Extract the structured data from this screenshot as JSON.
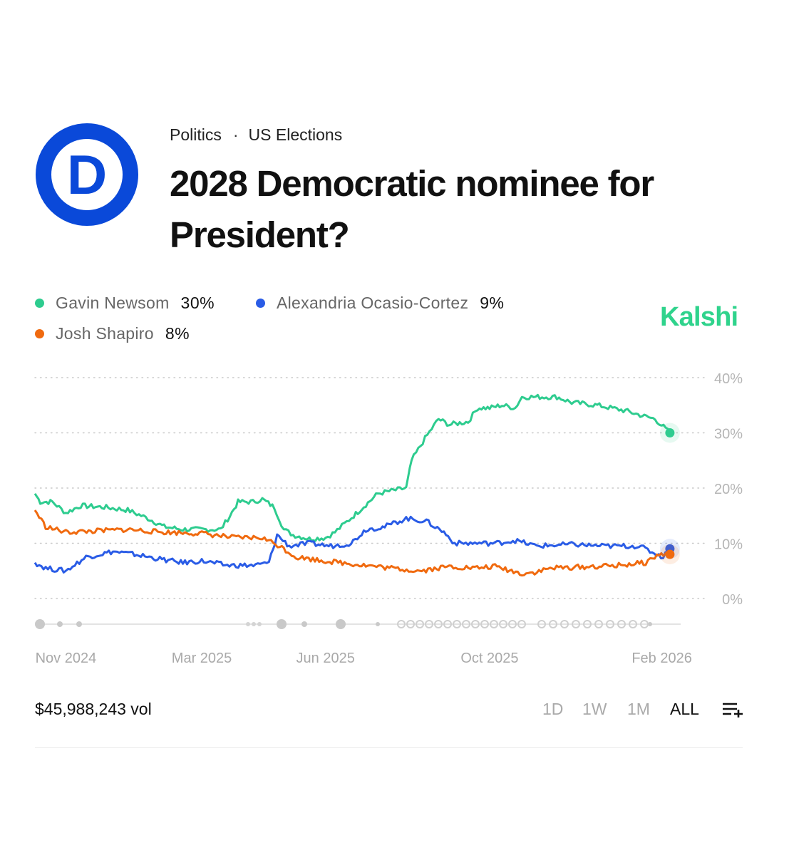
{
  "header": {
    "breadcrumb": [
      "Politics",
      "US Elections"
    ],
    "breadcrumb_sep": "·",
    "title": "2028 Democratic nominee for President?",
    "logo_letter": "D"
  },
  "brand": "Kalshi",
  "colors": {
    "newsom": "#2ecc8f",
    "aoc": "#2a5ce6",
    "shapiro": "#f06a0f",
    "logo": "#0a49d9",
    "brand": "#2fd38c"
  },
  "legend": [
    {
      "name": "Gavin Newsom",
      "value": "30%",
      "color": "#2ecc8f"
    },
    {
      "name": "Alexandria Ocasio-Cortez",
      "value": "9%",
      "color": "#2a5ce6"
    },
    {
      "name": "Josh Shapiro",
      "value": "8%",
      "color": "#f06a0f"
    }
  ],
  "footer": {
    "volume": "$45,988,243 vol",
    "ranges": [
      "1D",
      "1W",
      "1M",
      "ALL"
    ],
    "active_range": "ALL",
    "menu_icon": "list-add-icon"
  },
  "chart_data": {
    "type": "line",
    "x_range": [
      "2024-10-28",
      "2026-02-20"
    ],
    "x_ticks": [
      {
        "label": "Nov 2024",
        "date": "2024-11-20"
      },
      {
        "label": "Mar 2025",
        "date": "2025-03-01"
      },
      {
        "label": "Jun 2025",
        "date": "2025-06-01"
      },
      {
        "label": "Oct 2025",
        "date": "2025-10-01"
      },
      {
        "label": "Feb 2026",
        "date": "2026-02-06"
      }
    ],
    "y_ticks": [
      "0%",
      "10%",
      "20%",
      "30%",
      "40%"
    ],
    "ylim": [
      0,
      40
    ],
    "y_axis_side": "right",
    "grid": true,
    "series": [
      {
        "name": "Gavin Newsom",
        "color": "#2ecc8f",
        "points": [
          [
            "2024-10-28",
            19
          ],
          [
            "2024-11-01",
            17.5
          ],
          [
            "2024-11-10",
            17.5
          ],
          [
            "2024-11-20",
            15.5
          ],
          [
            "2024-12-01",
            16.8
          ],
          [
            "2024-12-20",
            16.5
          ],
          [
            "2025-01-05",
            16
          ],
          [
            "2025-01-20",
            14.5
          ],
          [
            "2025-02-01",
            13
          ],
          [
            "2025-02-15",
            12.5
          ],
          [
            "2025-03-01",
            12.5
          ],
          [
            "2025-03-15",
            12.5
          ],
          [
            "2025-03-22",
            15
          ],
          [
            "2025-03-28",
            17.5
          ],
          [
            "2025-04-08",
            17.5
          ],
          [
            "2025-04-15",
            18
          ],
          [
            "2025-04-24",
            16.5
          ],
          [
            "2025-05-01",
            12.5
          ],
          [
            "2025-05-08",
            11.5
          ],
          [
            "2025-05-20",
            10.8
          ],
          [
            "2025-06-01",
            11
          ],
          [
            "2025-06-08",
            12
          ],
          [
            "2025-06-15",
            13.5
          ],
          [
            "2025-06-22",
            15
          ],
          [
            "2025-07-01",
            17
          ],
          [
            "2025-07-10",
            19
          ],
          [
            "2025-07-20",
            19.5
          ],
          [
            "2025-07-31",
            20
          ],
          [
            "2025-08-04",
            25
          ],
          [
            "2025-08-14",
            29
          ],
          [
            "2025-08-24",
            32.5
          ],
          [
            "2025-09-01",
            31.5
          ],
          [
            "2025-09-15",
            32
          ],
          [
            "2025-09-22",
            34.5
          ],
          [
            "2025-10-01",
            34.5
          ],
          [
            "2025-10-10",
            35
          ],
          [
            "2025-10-20",
            34.5
          ],
          [
            "2025-10-25",
            36.5
          ],
          [
            "2025-11-01",
            36.5
          ],
          [
            "2025-11-20",
            36.5
          ],
          [
            "2025-12-01",
            35.5
          ],
          [
            "2025-12-20",
            35
          ],
          [
            "2026-01-10",
            34
          ],
          [
            "2026-01-24",
            33
          ],
          [
            "2026-02-01",
            32.5
          ],
          [
            "2026-02-12",
            30
          ]
        ]
      },
      {
        "name": "Alexandria Ocasio-Cortez",
        "color": "#2a5ce6",
        "points": [
          [
            "2024-10-28",
            6.5
          ],
          [
            "2024-11-05",
            5.5
          ],
          [
            "2024-11-20",
            5
          ],
          [
            "2024-12-05",
            7.5
          ],
          [
            "2024-12-25",
            8.5
          ],
          [
            "2025-01-10",
            8
          ],
          [
            "2025-02-01",
            7
          ],
          [
            "2025-02-15",
            6.5
          ],
          [
            "2025-03-01",
            6.8
          ],
          [
            "2025-03-20",
            6
          ],
          [
            "2025-04-10",
            6
          ],
          [
            "2025-04-20",
            6.5
          ],
          [
            "2025-04-26",
            11.5
          ],
          [
            "2025-05-05",
            9.5
          ],
          [
            "2025-05-20",
            10
          ],
          [
            "2025-06-05",
            9.5
          ],
          [
            "2025-06-20",
            10
          ],
          [
            "2025-07-01",
            12.5
          ],
          [
            "2025-07-15",
            13
          ],
          [
            "2025-07-31",
            14.5
          ],
          [
            "2025-08-15",
            14
          ],
          [
            "2025-08-28",
            12
          ],
          [
            "2025-09-05",
            10
          ],
          [
            "2025-09-20",
            10
          ],
          [
            "2025-10-05",
            10
          ],
          [
            "2025-10-20",
            10.5
          ],
          [
            "2025-11-05",
            9.5
          ],
          [
            "2025-12-01",
            9.8
          ],
          [
            "2025-12-25",
            9.5
          ],
          [
            "2026-01-20",
            9.5
          ],
          [
            "2026-02-07",
            7.5
          ],
          [
            "2026-02-12",
            9
          ]
        ]
      },
      {
        "name": "Josh Shapiro",
        "color": "#f06a0f",
        "points": [
          [
            "2024-10-28",
            16
          ],
          [
            "2024-11-05",
            13
          ],
          [
            "2024-11-20",
            12
          ],
          [
            "2024-12-10",
            12.2
          ],
          [
            "2025-01-05",
            12.5
          ],
          [
            "2025-02-01",
            12
          ],
          [
            "2025-03-01",
            11.8
          ],
          [
            "2025-03-25",
            11
          ],
          [
            "2025-04-15",
            11
          ],
          [
            "2025-04-28",
            9.5
          ],
          [
            "2025-05-10",
            7.5
          ],
          [
            "2025-06-01",
            6.8
          ],
          [
            "2025-07-01",
            6
          ],
          [
            "2025-07-20",
            5.5
          ],
          [
            "2025-08-10",
            5
          ],
          [
            "2025-09-01",
            5.8
          ],
          [
            "2025-09-20",
            5.5
          ],
          [
            "2025-10-05",
            5.8
          ],
          [
            "2025-10-25",
            4.5
          ],
          [
            "2025-11-05",
            4.8
          ],
          [
            "2025-11-15",
            5.5
          ],
          [
            "2025-12-20",
            5.8
          ],
          [
            "2026-01-05",
            6
          ],
          [
            "2026-01-25",
            6.5
          ],
          [
            "2026-02-04",
            8
          ],
          [
            "2026-02-12",
            8
          ]
        ]
      }
    ]
  }
}
